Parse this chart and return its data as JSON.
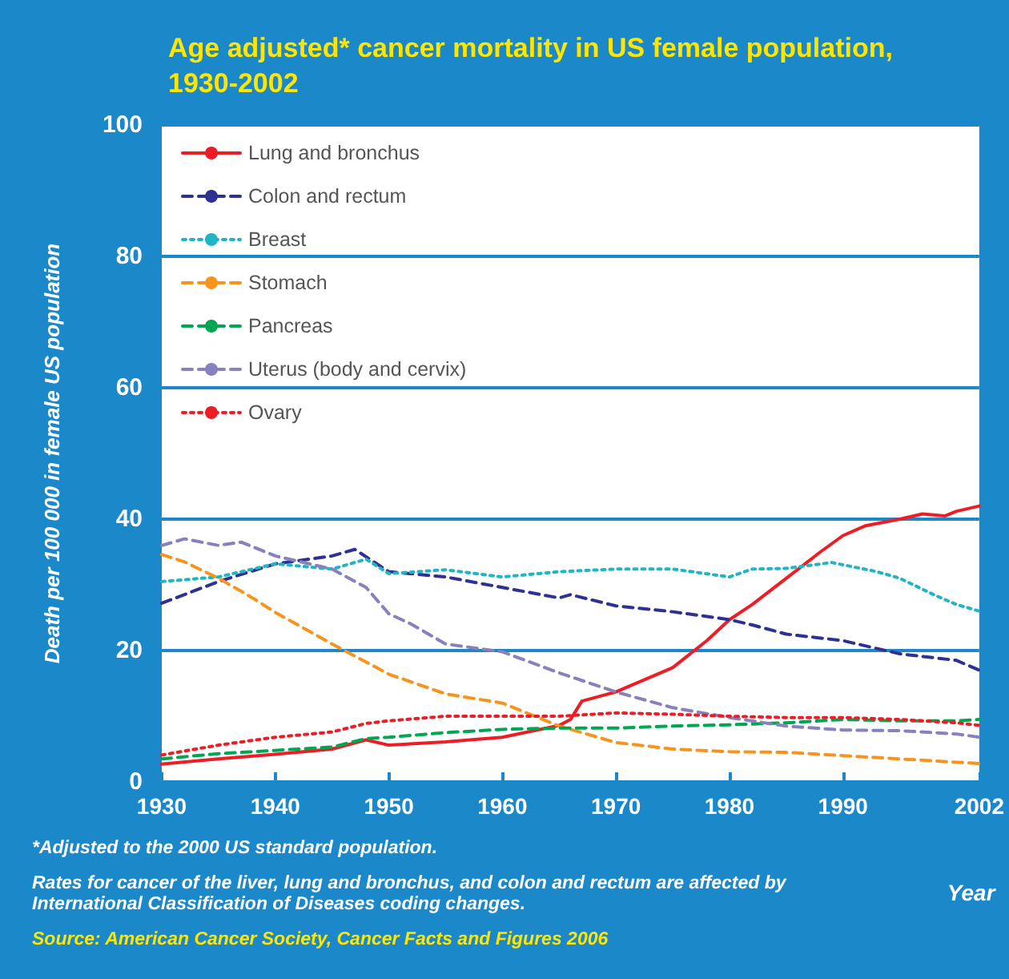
{
  "chart_data": {
    "type": "line",
    "title": "Age adjusted* cancer mortality in US female population,\n1930-2002",
    "xlabel": "Year",
    "ylabel": "Death per 100 000 in female US population",
    "xlim": [
      1930,
      2002
    ],
    "xticks": [
      1930,
      1940,
      1950,
      1960,
      1970,
      1980,
      1990,
      2002
    ],
    "ylim": [
      0,
      100
    ],
    "yticks": [
      0,
      20,
      40,
      60,
      80,
      100
    ],
    "grid": "y",
    "legend": "top left",
    "marker": "none",
    "series": [
      {
        "name": "Lung and bronchus",
        "color": "#ee1c25",
        "line_style": "solid",
        "x": [
          1930,
          1935,
          1940,
          1945,
          1948,
          1950,
          1955,
          1960,
          1965,
          1966,
          1967,
          1970,
          1975,
          1978,
          1980,
          1982,
          1985,
          1988,
          1990,
          1992,
          1995,
          1997,
          1999,
          2000,
          2002
        ],
        "values": [
          2.7,
          3.5,
          4.2,
          5,
          6.4,
          5.6,
          6.1,
          6.8,
          8.6,
          9.5,
          12.3,
          13.7,
          17.4,
          21.5,
          24.7,
          27,
          31,
          35,
          37.5,
          39,
          40,
          40.8,
          40.5,
          41.2,
          42
        ]
      },
      {
        "name": "Colon and rectum",
        "color": "#2e3192",
        "line_style": "dashed",
        "x": [
          1930,
          1935,
          1940,
          1945,
          1947,
          1950,
          1955,
          1960,
          1965,
          1966,
          1970,
          1975,
          1980,
          1982,
          1985,
          1990,
          1995,
          2000,
          2002
        ],
        "values": [
          27.2,
          30.5,
          33.2,
          34.4,
          35.4,
          32,
          31.2,
          29.6,
          28,
          28.5,
          26.8,
          25.9,
          24.7,
          23.9,
          22.5,
          21.5,
          19.5,
          18.5,
          17
        ]
      },
      {
        "name": "Breast",
        "color": "#1fb5c4",
        "line_style": "dotted",
        "x": [
          1930,
          1935,
          1940,
          1945,
          1948,
          1950,
          1955,
          1960,
          1965,
          1970,
          1975,
          1980,
          1982,
          1985,
          1989,
          1993,
          1995,
          1998,
          2000,
          2002
        ],
        "values": [
          30.5,
          31.2,
          33.2,
          32.4,
          33.9,
          31.7,
          32.3,
          31.2,
          32,
          32.4,
          32.4,
          31.2,
          32.4,
          32.5,
          33.4,
          32,
          31,
          28.5,
          27,
          26
        ]
      },
      {
        "name": "Stomach",
        "color": "#f7941d",
        "line_style": "dashed",
        "x": [
          1930,
          1932,
          1935,
          1938,
          1940,
          1945,
          1950,
          1955,
          1960,
          1965,
          1970,
          1975,
          1980,
          1985,
          1990,
          1995,
          2000,
          2002
        ],
        "values": [
          34.6,
          33.5,
          31,
          28,
          25.8,
          21,
          16.4,
          13.4,
          12,
          8.5,
          6,
          5,
          4.6,
          4.5,
          4,
          3.5,
          3,
          2.8
        ]
      },
      {
        "name": "Pancreas",
        "color": "#00a651",
        "line_style": "dashed",
        "x": [
          1930,
          1935,
          1940,
          1945,
          1948,
          1950,
          1955,
          1960,
          1965,
          1970,
          1975,
          1980,
          1985,
          1990,
          1995,
          2000,
          2002
        ],
        "values": [
          3.5,
          4.3,
          4.8,
          5.3,
          6.6,
          6.8,
          7.5,
          8,
          8.2,
          8.2,
          8.5,
          8.7,
          9,
          9.5,
          9.3,
          9.3,
          9.5
        ]
      },
      {
        "name": "Uterus (body and cervix)",
        "color": "#8781bd",
        "line_style": "dashed",
        "x": [
          1930,
          1932,
          1935,
          1937,
          1940,
          1945,
          1948,
          1950,
          1952,
          1955,
          1960,
          1965,
          1970,
          1975,
          1980,
          1985,
          1990,
          1995,
          2000,
          2002
        ],
        "values": [
          36,
          37,
          36,
          36.5,
          34.4,
          32.4,
          29.6,
          25.6,
          24,
          21,
          19.8,
          16.6,
          13.7,
          11.3,
          9.8,
          8.5,
          7.9,
          7.8,
          7.3,
          6.8
        ]
      },
      {
        "name": "Ovary",
        "color": "#ee1c25",
        "line_style": "dotted",
        "x": [
          1930,
          1935,
          1940,
          1945,
          1948,
          1950,
          1955,
          1960,
          1965,
          1970,
          1975,
          1980,
          1985,
          1990,
          1995,
          2000,
          2002
        ],
        "values": [
          4.1,
          5.6,
          6.8,
          7.6,
          8.9,
          9.3,
          10,
          10,
          10,
          10.5,
          10.3,
          10,
          9.8,
          9.8,
          9.5,
          9,
          8.6
        ]
      }
    ],
    "annotations": [
      "*Adjusted to the 2000 US standard population.",
      "Rates for cancer of the liver, lung and bronchus, and colon and rectum are affected by\nInternational Classification of Diseases coding changes.",
      "Source: American Cancer Society, Cancer Facts and Figures 2006"
    ]
  }
}
